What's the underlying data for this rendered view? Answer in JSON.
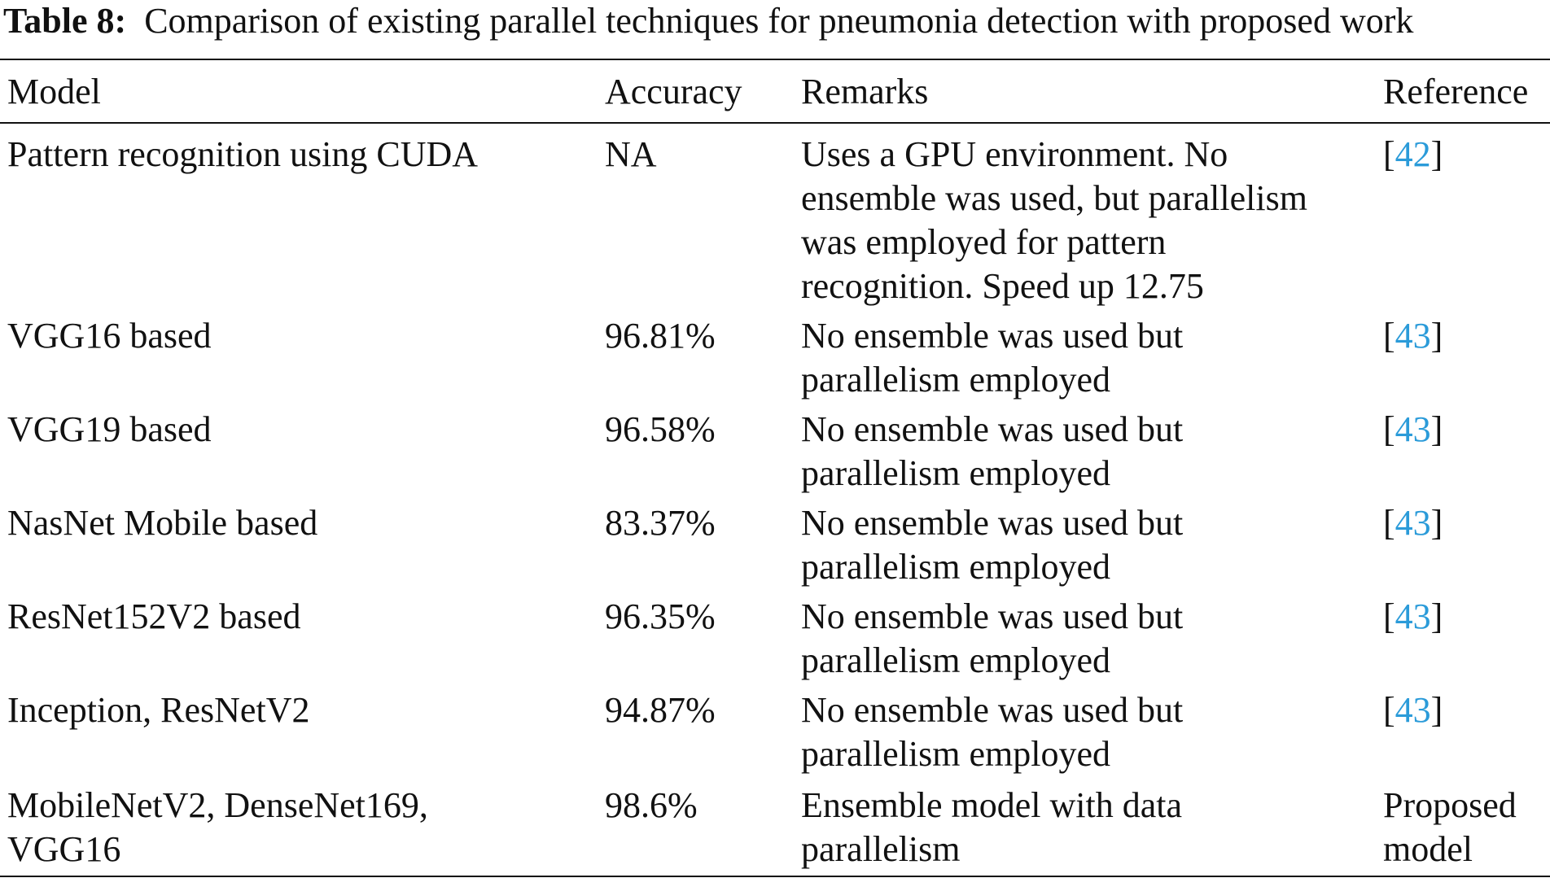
{
  "caption": {
    "label": "Table 8:",
    "text": "Comparison of existing parallel techniques for pneumonia detection with proposed work"
  },
  "table": {
    "headers": [
      "Model",
      "Accuracy",
      "Remarks",
      "Reference"
    ],
    "rows": [
      {
        "model": [
          "Pattern recognition using CUDA"
        ],
        "accuracy": "NA",
        "remarks": [
          "Uses a GPU environment. No",
          "ensemble was used, but parallelism",
          "was employed for pattern",
          "recognition. Speed up 12.75"
        ],
        "reference_type": "citation",
        "reference": "42"
      },
      {
        "model": [
          "VGG16 based"
        ],
        "accuracy": "96.81%",
        "remarks": [
          "No ensemble was used but",
          "parallelism employed"
        ],
        "reference_type": "citation",
        "reference": "43"
      },
      {
        "model": [
          "VGG19 based"
        ],
        "accuracy": "96.58%",
        "remarks": [
          "No ensemble was used but",
          "parallelism employed"
        ],
        "reference_type": "citation",
        "reference": "43"
      },
      {
        "model": [
          "NasNet Mobile based"
        ],
        "accuracy": "83.37%",
        "remarks": [
          "No ensemble was used but",
          "parallelism employed"
        ],
        "reference_type": "citation",
        "reference": "43"
      },
      {
        "model": [
          "ResNet152V2 based"
        ],
        "accuracy": "96.35%",
        "remarks": [
          "No ensemble was used but",
          "parallelism employed"
        ],
        "reference_type": "citation",
        "reference": "43"
      },
      {
        "model": [
          "Inception, ResNetV2"
        ],
        "accuracy": "94.87%",
        "remarks": [
          "No ensemble was used but",
          "parallelism employed"
        ],
        "reference_type": "citation",
        "reference": "43"
      },
      {
        "model": [
          "MobileNetV2, DenseNet169,",
          "VGG16"
        ],
        "accuracy": "98.6%",
        "remarks": [
          "Ensemble model with data",
          "parallelism"
        ],
        "reference_type": "text",
        "reference": [
          "Proposed",
          "model"
        ]
      }
    ]
  },
  "colors": {
    "text": "#111111",
    "link": "#2b9bd9",
    "rule": "#111111"
  }
}
